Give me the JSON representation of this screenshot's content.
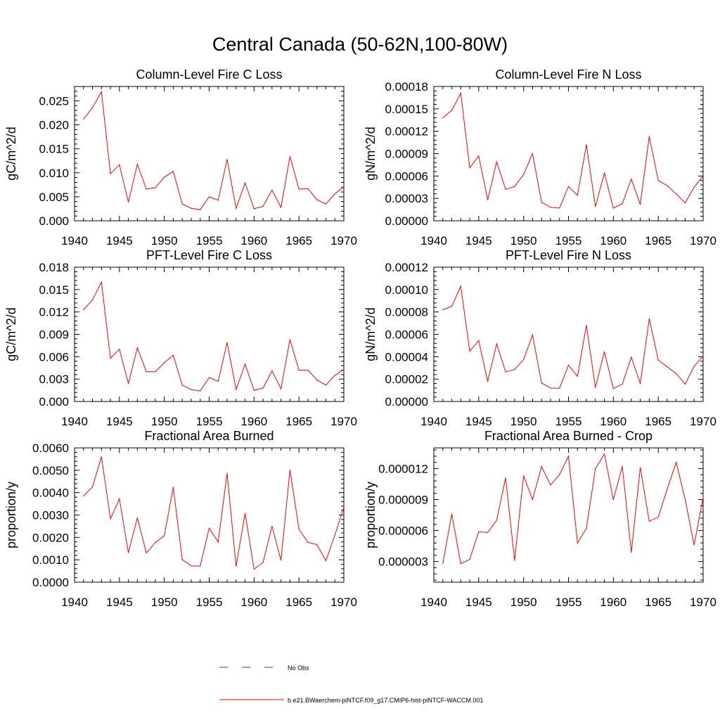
{
  "page_title": "Central Canada (50-62N,100-80W)",
  "legend": {
    "entries": [
      {
        "label": "No Obs",
        "color": "#3333cc",
        "style": "dashed"
      },
      {
        "label": "b.e21.BWaerchem-piNTCF.f09_g17.CMIP6-hist-piNTCF-WACCM.001",
        "color": "#ff0000",
        "style": "solid"
      }
    ]
  },
  "chart_data": [
    {
      "type": "line",
      "title": "Column-Level Fire C Loss",
      "ylabel": "gC/m^2/d",
      "xlim": [
        1940,
        1970
      ],
      "xticks": [
        "1940",
        "1945",
        "1950",
        "1955",
        "1960",
        "1965",
        "1970"
      ],
      "ylim": [
        0,
        0.028
      ],
      "yticks": [
        "0.000",
        "0.005",
        "0.010",
        "0.015",
        "0.020",
        "0.025"
      ],
      "yticks_values": [
        0,
        0.005,
        0.01,
        0.015,
        0.02,
        0.025
      ],
      "series": [
        {
          "color": "#ff0000",
          "x": [
            1941,
            1942,
            1943,
            1944,
            1945,
            1946,
            1947,
            1948,
            1949,
            1950,
            1951,
            1952,
            1953,
            1954,
            1955,
            1956,
            1957,
            1958,
            1959,
            1960,
            1961,
            1962,
            1963,
            1964,
            1965,
            1966,
            1967,
            1968,
            1969,
            1970
          ],
          "values": [
            0.0212,
            0.0236,
            0.0269,
            0.0098,
            0.0117,
            0.0039,
            0.0118,
            0.0066,
            0.0069,
            0.0091,
            0.0103,
            0.0035,
            0.0026,
            0.0023,
            0.005,
            0.0043,
            0.0128,
            0.0026,
            0.0079,
            0.0025,
            0.003,
            0.0064,
            0.0028,
            0.0134,
            0.0066,
            0.0067,
            0.0044,
            0.0035,
            0.0056,
            0.0071
          ]
        }
      ]
    },
    {
      "type": "line",
      "title": "Column-Level Fire N Loss",
      "ylabel": "gN/m^2/d",
      "xlim": [
        1940,
        1970
      ],
      "xticks": [
        "1940",
        "1945",
        "1950",
        "1955",
        "1960",
        "1965",
        "1970"
      ],
      "ylim": [
        0,
        0.00018
      ],
      "yticks": [
        "0.00000",
        "0.00003",
        "0.00006",
        "0.00009",
        "0.00012",
        "0.00015",
        "0.00018"
      ],
      "yticks_values": [
        0,
        3e-05,
        6e-05,
        9e-05,
        0.00012,
        0.00015,
        0.00018
      ],
      "series": [
        {
          "color": "#ff0000",
          "x": [
            1941,
            1942,
            1943,
            1944,
            1945,
            1946,
            1947,
            1948,
            1949,
            1950,
            1951,
            1952,
            1953,
            1954,
            1955,
            1956,
            1957,
            1958,
            1959,
            1960,
            1961,
            1962,
            1963,
            1964,
            1965,
            1966,
            1967,
            1968,
            1969,
            1970
          ],
          "values": [
            0.000138,
            0.000148,
            0.000171,
            7.1e-05,
            8.7e-05,
            2.8e-05,
            7.9e-05,
            4.2e-05,
            4.6e-05,
            6.2e-05,
            9e-05,
            2.5e-05,
            1.8e-05,
            1.7e-05,
            4.6e-05,
            3.4e-05,
            0.000102,
            1.9e-05,
            6.4e-05,
            1.7e-05,
            2.3e-05,
            5.6e-05,
            2.2e-05,
            0.000113,
            5.4e-05,
            4.7e-05,
            3.6e-05,
            2.4e-05,
            4.5e-05,
            6e-05
          ]
        }
      ]
    },
    {
      "type": "line",
      "title": "PFT-Level Fire C Loss",
      "ylabel": "gC/m^2/d",
      "xlim": [
        1940,
        1970
      ],
      "xticks": [
        "1940",
        "1945",
        "1950",
        "1955",
        "1960",
        "1965",
        "1970"
      ],
      "ylim": [
        0,
        0.018
      ],
      "yticks": [
        "0.000",
        "0.003",
        "0.006",
        "0.009",
        "0.012",
        "0.015",
        "0.018"
      ],
      "yticks_values": [
        0,
        0.003,
        0.006,
        0.009,
        0.012,
        0.015,
        0.018
      ],
      "series": [
        {
          "color": "#ff0000",
          "x": [
            1941,
            1942,
            1943,
            1944,
            1945,
            1946,
            1947,
            1948,
            1949,
            1950,
            1951,
            1952,
            1953,
            1954,
            1955,
            1956,
            1957,
            1958,
            1959,
            1960,
            1961,
            1962,
            1963,
            1964,
            1965,
            1966,
            1967,
            1968,
            1969,
            1970
          ],
          "values": [
            0.0123,
            0.0136,
            0.016,
            0.0058,
            0.007,
            0.0024,
            0.0072,
            0.004,
            0.004,
            0.0052,
            0.0062,
            0.0022,
            0.0016,
            0.0014,
            0.0032,
            0.0027,
            0.0079,
            0.0016,
            0.005,
            0.0015,
            0.0018,
            0.0041,
            0.0017,
            0.0083,
            0.0042,
            0.0042,
            0.0029,
            0.0022,
            0.0035,
            0.0043
          ]
        }
      ]
    },
    {
      "type": "line",
      "title": "PFT-Level Fire N Loss",
      "ylabel": "gN/m^2/d",
      "xlim": [
        1940,
        1970
      ],
      "xticks": [
        "1940",
        "1945",
        "1950",
        "1955",
        "1960",
        "1965",
        "1970"
      ],
      "ylim": [
        0,
        0.00012
      ],
      "yticks": [
        "0.00000",
        "0.00002",
        "0.00004",
        "0.00006",
        "0.00008",
        "0.00010",
        "0.00012"
      ],
      "yticks_values": [
        0,
        2e-05,
        4e-05,
        6e-05,
        8e-05,
        0.0001,
        0.00012
      ],
      "series": [
        {
          "color": "#ff0000",
          "x": [
            1941,
            1942,
            1943,
            1944,
            1945,
            1946,
            1947,
            1948,
            1949,
            1950,
            1951,
            1952,
            1953,
            1954,
            1955,
            1956,
            1957,
            1958,
            1959,
            1960,
            1961,
            1962,
            1963,
            1964,
            1965,
            1966,
            1967,
            1968,
            1969,
            1970
          ],
          "values": [
            8.2e-05,
            8.5e-05,
            0.000103,
            4.5e-05,
            5.45e-05,
            1.8e-05,
            5.15e-05,
            2.65e-05,
            2.85e-05,
            3.75e-05,
            5.95e-05,
            1.65e-05,
            1.2e-05,
            1.18e-05,
            3.25e-05,
            2.25e-05,
            6.8e-05,
            1.25e-05,
            4.45e-05,
            1.15e-05,
            1.55e-05,
            3.95e-05,
            1.6e-05,
            7.4e-05,
            3.7e-05,
            3.1e-05,
            2.5e-05,
            1.55e-05,
            3.15e-05,
            4.05e-05
          ]
        }
      ]
    },
    {
      "type": "line",
      "title": "Fractional Area Burned",
      "ylabel": "proportion/y",
      "xlim": [
        1940,
        1970
      ],
      "xticks": [
        "1940",
        "1945",
        "1950",
        "1955",
        "1960",
        "1965",
        "1970"
      ],
      "ylim": [
        0,
        0.006
      ],
      "yticks": [
        "0.0000",
        "0.0010",
        "0.0020",
        "0.0030",
        "0.0040",
        "0.0050",
        "0.0060"
      ],
      "yticks_values": [
        0,
        0.001,
        0.002,
        0.003,
        0.004,
        0.005,
        0.006
      ],
      "series": [
        {
          "color": "#ff0000",
          "x": [
            1941,
            1942,
            1943,
            1944,
            1945,
            1946,
            1947,
            1948,
            1949,
            1950,
            1951,
            1952,
            1953,
            1954,
            1955,
            1956,
            1957,
            1958,
            1959,
            1960,
            1961,
            1962,
            1963,
            1964,
            1965,
            1966,
            1967,
            1968,
            1969,
            1970
          ],
          "values": [
            0.00385,
            0.00425,
            0.0056,
            0.00283,
            0.00372,
            0.00132,
            0.00288,
            0.00131,
            0.00177,
            0.00208,
            0.00424,
            0.00101,
            0.00073,
            0.00072,
            0.00241,
            0.0018,
            0.00487,
            0.00071,
            0.00308,
            0.00058,
            0.00088,
            0.0025,
            0.00098,
            0.00501,
            0.00237,
            0.00178,
            0.00168,
            0.00096,
            0.0021,
            0.00335
          ]
        }
      ]
    },
    {
      "type": "line",
      "title": "Fractional Area Burned - Crop",
      "ylabel": "proportion/y",
      "xlim": [
        1940,
        1970
      ],
      "xticks": [
        "1940",
        "1945",
        "1950",
        "1955",
        "1960",
        "1965",
        "1970"
      ],
      "ylim": [
        1e-06,
        1.4e-05
      ],
      "yticks": [
        "0.000003",
        "0.000006",
        "0.000009",
        "0.000012"
      ],
      "yticks_values": [
        3e-06,
        6e-06,
        9e-06,
        1.2e-05
      ],
      "series": [
        {
          "color": "#ff0000",
          "x": [
            1941,
            1942,
            1943,
            1944,
            1945,
            1946,
            1947,
            1948,
            1949,
            1950,
            1951,
            1952,
            1953,
            1954,
            1955,
            1956,
            1957,
            1958,
            1959,
            1960,
            1961,
            1962,
            1963,
            1964,
            1965,
            1966,
            1967,
            1968,
            1969,
            1970
          ],
          "values": [
            2.8e-06,
            7.6e-06,
            2.8e-06,
            3.2e-06,
            5.9e-06,
            5.8e-06,
            7e-06,
            1.11e-05,
            3.1e-06,
            1.13e-05,
            9e-06,
            1.22e-05,
            1.04e-05,
            1.14e-05,
            1.32e-05,
            4.8e-06,
            6.2e-06,
            1.2e-05,
            1.34e-05,
            9e-06,
            1.22e-05,
            3.9e-06,
            1.21e-05,
            6.9e-06,
            7.3e-06,
            1e-05,
            1.26e-05,
            9e-06,
            4.6e-06,
            9.2e-06
          ]
        }
      ]
    }
  ]
}
